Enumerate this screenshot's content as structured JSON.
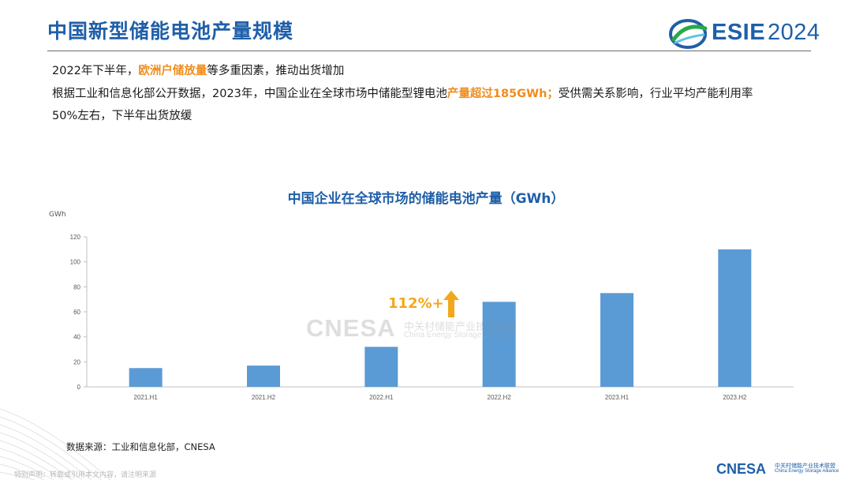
{
  "header": {
    "title": "中国新型储能电池产量规模",
    "logo_text": "ESIE",
    "logo_year": "2024"
  },
  "intro": {
    "line1_before": "2022年下半年，",
    "line1_highlight": "欧洲户储放量",
    "line1_after": "等多重因素，推动出货增加",
    "line2_before": "根据工业和信息化部公开数据，2023年，中国企业在全球市场中储能型锂电池",
    "line2_highlight": "产量超过185GWh；",
    "line2_after": "受供需关系影响，行业平均产能利用率",
    "line3": "50%左右，下半年出货放缓"
  },
  "chart_data": {
    "type": "bar",
    "title": "中国企业在全球市场的储能电池产量（GWh）",
    "ylabel": "GWh",
    "categories": [
      "2021.H1",
      "2021.H2",
      "2022.H1",
      "2022.H2",
      "2023.H1",
      "2023.H2"
    ],
    "values": [
      15,
      17,
      32,
      68,
      75,
      110
    ],
    "ylim": [
      0,
      120
    ],
    "yticks": [
      0,
      20,
      40,
      60,
      80,
      100,
      120
    ],
    "bar_color": "#5b9bd5",
    "grid": false,
    "annotation": "112%+"
  },
  "watermark": {
    "brand": "CNESA",
    "cn": "中关村储能产业技术联盟",
    "en": "China Energy Storage Alliance"
  },
  "source": "数据来源：工业和信息化部，CNESA",
  "footnote": "特别声明：转载或引用本文内容，请注明来源",
  "footer_logo": {
    "brand": "CNESA",
    "cn": "中关村储能产业技术联盟",
    "en": "China Energy Storage Alliance"
  },
  "colors": {
    "title_blue": "#1f5fa8",
    "highlight_orange": "#f08c1c",
    "arrow_yellow": "#f2a81c"
  }
}
